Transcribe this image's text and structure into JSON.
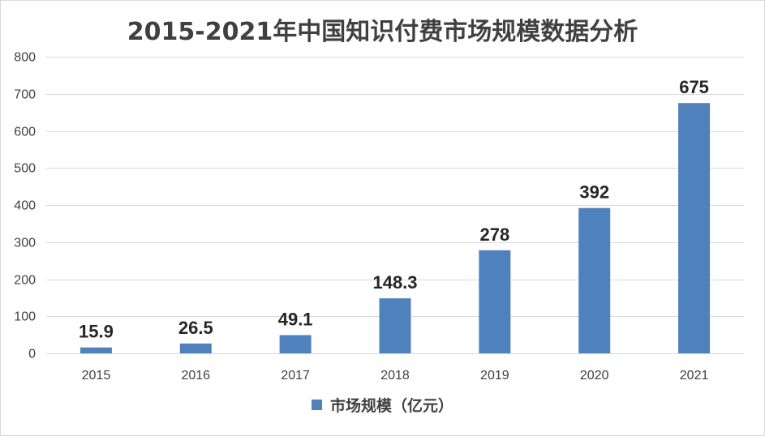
{
  "chart_data": {
    "type": "bar",
    "title": "2015-2021年中国知识付费市场规模数据分析",
    "categories": [
      "2015",
      "2016",
      "2017",
      "2018",
      "2019",
      "2020",
      "2021"
    ],
    "series": [
      {
        "name": "市场规模（亿元）",
        "values": [
          15.9,
          26.5,
          49.1,
          148.3,
          278,
          392,
          675
        ],
        "data_labels": [
          "15.9",
          "26.5",
          "49.1",
          "148.3",
          "278",
          "392",
          "675"
        ],
        "color": "#4f81bd"
      }
    ],
    "ylim": [
      0,
      800
    ],
    "y_ticks": [
      0,
      100,
      200,
      300,
      400,
      500,
      600,
      700,
      800
    ],
    "grid": true,
    "legend_position": "bottom"
  }
}
